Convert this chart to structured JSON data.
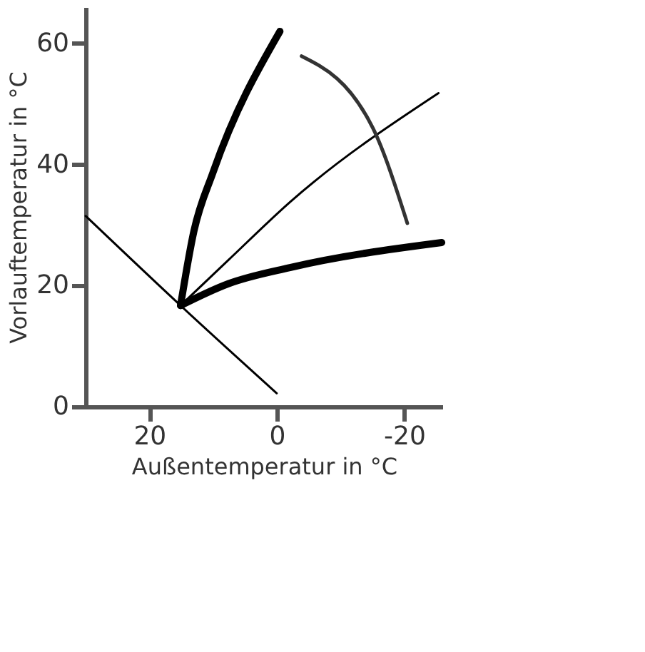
{
  "chart_data": {
    "type": "line",
    "xlabel": "Außentemperatur in °C",
    "ylabel": "Vorlauftemperatur in °C",
    "xlim": [
      30,
      -26
    ],
    "ylim": [
      0,
      66
    ],
    "xticks": [
      20,
      0,
      -20
    ],
    "yticks": [
      0,
      20,
      40,
      60
    ],
    "grid": false,
    "marker": "none",
    "line_style": "solid",
    "series": [
      {
        "color": "#000000",
        "x": [
          15.1,
          13,
          10,
          -0.5
        ],
        "values": [
          16.7,
          29,
          38.7,
          62
        ]
      },
      {
        "color": "#000000",
        "x": [
          15.1,
          7.6,
          -2.2,
          -25.4
        ],
        "values": [
          16.7,
          24.2,
          33.9,
          51.8
        ]
      },
      {
        "color": "#000000",
        "x": [
          15.1,
          7.6,
          -2.2,
          -25.9
        ],
        "values": [
          16.7,
          20.3,
          23,
          27.1
        ]
      },
      {
        "color": "#000000",
        "x": [
          30,
          15.1,
          0
        ],
        "values": [
          31.5,
          16.7,
          2.2
        ]
      },
      {
        "color": "#333333",
        "x": [
          -3.9,
          -15.1,
          -20.5
        ],
        "values": [
          57.9,
          46,
          30.3
        ]
      }
    ]
  }
}
